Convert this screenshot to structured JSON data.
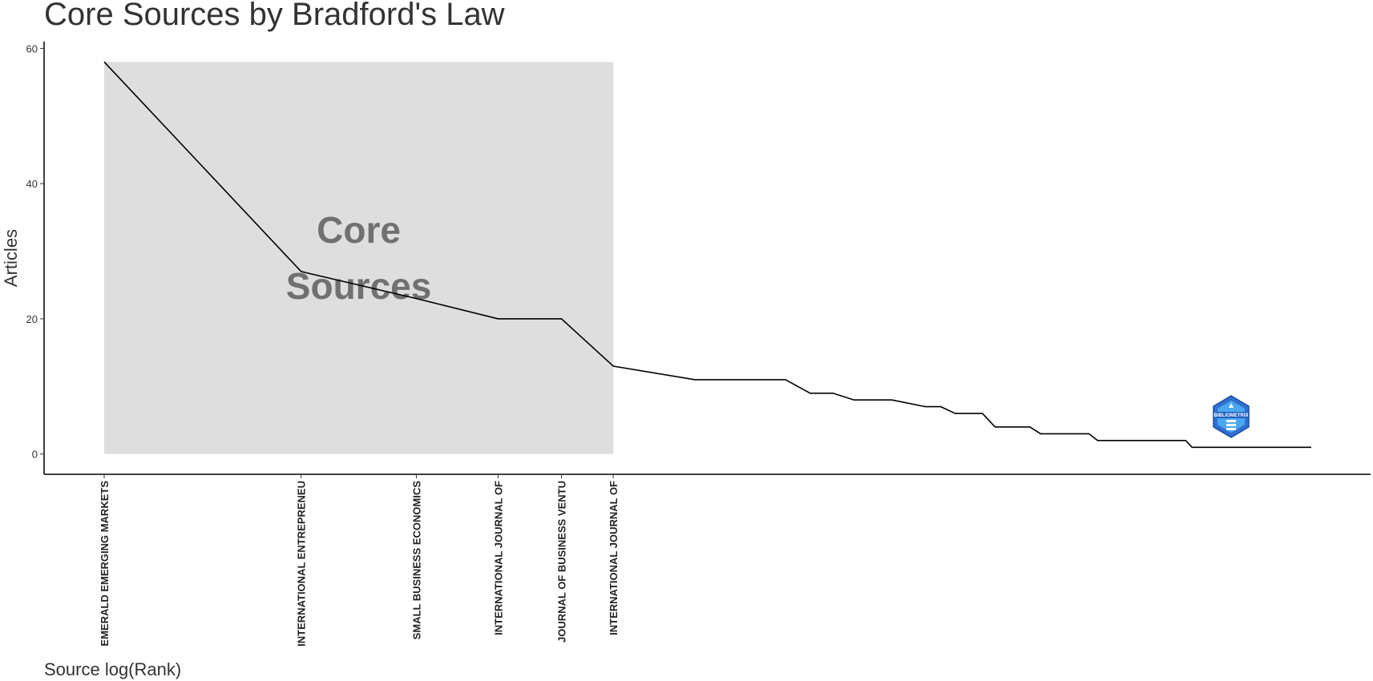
{
  "chart_data": {
    "type": "line",
    "title": "Core Sources by Bradford's Law",
    "xlabel": "Source log(Rank)",
    "ylabel": "Articles",
    "x_scale": "log",
    "ylim": [
      -3,
      61
    ],
    "y_ticks": [
      0,
      20,
      40,
      60
    ],
    "grid": false,
    "legend": "none",
    "line_color": "#000000",
    "core_zone": {
      "label_lines": [
        "Core",
        "Sources"
      ],
      "rank_range": [
        1,
        6
      ],
      "articles_range": [
        0,
        58
      ],
      "fill_color": "#dedede"
    },
    "tick_categories": [
      {
        "rank": 1,
        "label": "EMERALD EMERGING MARKETS"
      },
      {
        "rank": 2,
        "label": "INTERNATIONAL ENTREPRENEU"
      },
      {
        "rank": 3,
        "label": "SMALL BUSINESS ECONOMICS"
      },
      {
        "rank": 4,
        "label": "INTERNATIONAL JOURNAL OF"
      },
      {
        "rank": 5,
        "label": "JOURNAL OF BUSINESS VENTU"
      },
      {
        "rank": 6,
        "label": "INTERNATIONAL JOURNAL OF"
      }
    ],
    "series": [
      {
        "rank": [
          1,
          2,
          3,
          4,
          5,
          6,
          8,
          11,
          12,
          13,
          14,
          16,
          18,
          19,
          20,
          22,
          23,
          26,
          27,
          32,
          33,
          45,
          46,
          70
        ],
        "articles": [
          58,
          27,
          23,
          20,
          20,
          13,
          11,
          11,
          9,
          9,
          8,
          8,
          7,
          7,
          6,
          6,
          4,
          4,
          3,
          3,
          2,
          2,
          1,
          1
        ]
      }
    ]
  },
  "logo": {
    "text": "BIBLIOMETRIX",
    "icon": "bibliometrix-logo-icon",
    "color": "#3a7fd6"
  }
}
